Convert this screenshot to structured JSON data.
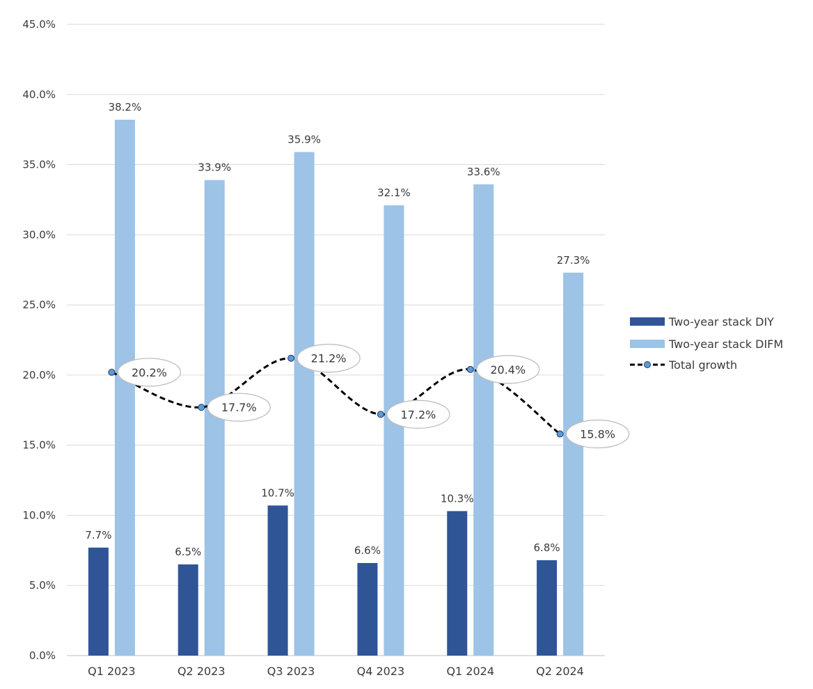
{
  "chart_data": {
    "type": "bar",
    "title": "",
    "xlabel": "",
    "ylabel": "",
    "categories": [
      "Q1 2023",
      "Q2 2023",
      "Q3 2023",
      "Q4 2023",
      "Q1 2024",
      "Q2 2024"
    ],
    "ylim": [
      0,
      45
    ],
    "yticks": [
      0,
      5,
      10,
      15,
      20,
      25,
      30,
      35,
      40,
      45
    ],
    "ytick_labels": [
      "0.0%",
      "5.0%",
      "10.0%",
      "15.0%",
      "20.0%",
      "25.0%",
      "30.0%",
      "35.0%",
      "40.0%",
      "45.0%"
    ],
    "grid": true,
    "legend_position": "right",
    "series": [
      {
        "name": "Two-year stack DIY",
        "kind": "bar",
        "color": "#2f5597",
        "values": [
          7.7,
          6.5,
          10.7,
          6.6,
          10.3,
          6.8
        ],
        "labels": [
          "7.7%",
          "6.5%",
          "10.7%",
          "6.6%",
          "10.3%",
          "6.8%"
        ]
      },
      {
        "name": "Two-year stack DIFM",
        "kind": "bar",
        "color": "#9dc3e6",
        "values": [
          38.2,
          33.9,
          35.9,
          32.1,
          33.6,
          27.3
        ],
        "labels": [
          "38.2%",
          "33.9%",
          "35.9%",
          "32.1%",
          "33.6%",
          "27.3%"
        ]
      },
      {
        "name": "Total growth",
        "kind": "line",
        "style": "dashed-smooth",
        "color": "#000000",
        "marker_color": "#5b9bd5",
        "values": [
          20.2,
          17.7,
          21.2,
          17.2,
          20.4,
          15.8
        ],
        "labels": [
          "20.2%",
          "17.7%",
          "21.2%",
          "17.2%",
          "20.4%",
          "15.8%"
        ]
      }
    ]
  }
}
